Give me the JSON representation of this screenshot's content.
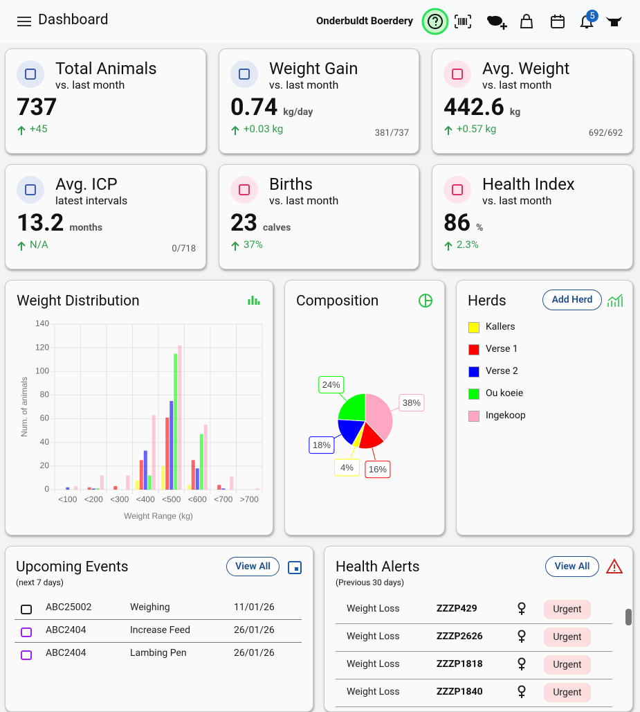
{
  "header": {
    "title": "Dashboard",
    "farm": "Onderbuldt Boerdery",
    "notifications": "5"
  },
  "stats": [
    {
      "title": "Total Animals",
      "subtitle": "vs. last month",
      "value": "737",
      "change": "+45"
    },
    {
      "title": "Weight Gain",
      "subtitle": "vs. last month",
      "value": "0.74",
      "unit": "kg/day",
      "change": "+0.03 kg",
      "count": "381/737"
    },
    {
      "title": "Avg. Weight",
      "subtitle": "vs. last month",
      "value": "442.6",
      "unit": "kg",
      "change": "+0.57 kg",
      "count": "692/692"
    },
    {
      "title": "Avg. ICP",
      "subtitle": "latest intervals",
      "value": "13.2",
      "unit": "months",
      "change": "N/A",
      "count": "0/718"
    },
    {
      "title": "Births",
      "subtitle": "vs. last month",
      "value": "23",
      "unit": "calves",
      "change": "37%"
    },
    {
      "title": "Health Index",
      "subtitle": "vs. last month",
      "value": "86",
      "unit": "%",
      "change": "2.3%"
    }
  ],
  "chart_data": [
    {
      "type": "bar",
      "title": "Weight Distribution",
      "x_label": "Weight Range (kg)",
      "y_label": "Num. of animals",
      "categories": [
        "<100",
        "<200",
        "<300",
        "<400",
        "<500",
        "<600",
        "<700",
        ">700"
      ],
      "series": [
        {
          "name": "Kallers",
          "color": "#ffff00",
          "values": [
            0,
            0,
            0,
            8,
            20,
            4,
            0,
            0
          ]
        },
        {
          "name": "Verse 1",
          "color": "#ff0000",
          "values": [
            0,
            2,
            3,
            25,
            61,
            25,
            4,
            0
          ]
        },
        {
          "name": "Verse 2",
          "color": "#0000ff",
          "values": [
            2,
            1,
            0,
            33,
            75,
            18,
            1,
            0
          ]
        },
        {
          "name": "Ou koeie",
          "color": "#00ff00",
          "values": [
            0,
            1,
            0,
            12,
            115,
            47,
            0,
            0
          ]
        },
        {
          "name": "Ingekoop",
          "color": "#ffa6c3",
          "values": [
            3,
            12,
            12,
            63,
            122,
            55,
            11,
            1
          ]
        }
      ],
      "ylim": [
        0,
        140
      ],
      "yticks": [
        0,
        20,
        40,
        60,
        80,
        100,
        120,
        140
      ],
      "grid": true
    },
    {
      "type": "pie",
      "title": "Composition",
      "values": [
        38,
        16,
        4,
        18,
        24
      ],
      "value_labels": [
        "38%",
        "16%",
        "4%",
        "18%",
        "24%"
      ],
      "colors": [
        "#ffa6c3",
        "#ff0000",
        "#ffff00",
        "#0000ff",
        "#00ff00"
      ]
    }
  ],
  "herds": {
    "title": "Herds",
    "button": "Add Herd"
  },
  "events": {
    "title": "Upcoming Events",
    "subtitle": "(next 7 days)",
    "button": "View All",
    "rows": [
      [
        "ABC25002",
        "Weighing",
        "11/01/26"
      ],
      [
        "ABC2404",
        "Increase Feed",
        "26/01/26"
      ],
      [
        "ABC2404",
        "Lambing Pen",
        "26/01/26"
      ]
    ]
  },
  "alerts": {
    "title": "Health Alerts",
    "subtitle": "(Previous 30 days)",
    "button": "View All",
    "rows": [
      [
        "Weight Loss",
        "ZZZP429",
        "Urgent"
      ],
      [
        "Weight Loss",
        "ZZZP2626",
        "Urgent"
      ],
      [
        "Weight Loss",
        "ZZZP1818",
        "Urgent"
      ],
      [
        "Weight Loss",
        "ZZZP1840",
        "Urgent"
      ]
    ]
  }
}
